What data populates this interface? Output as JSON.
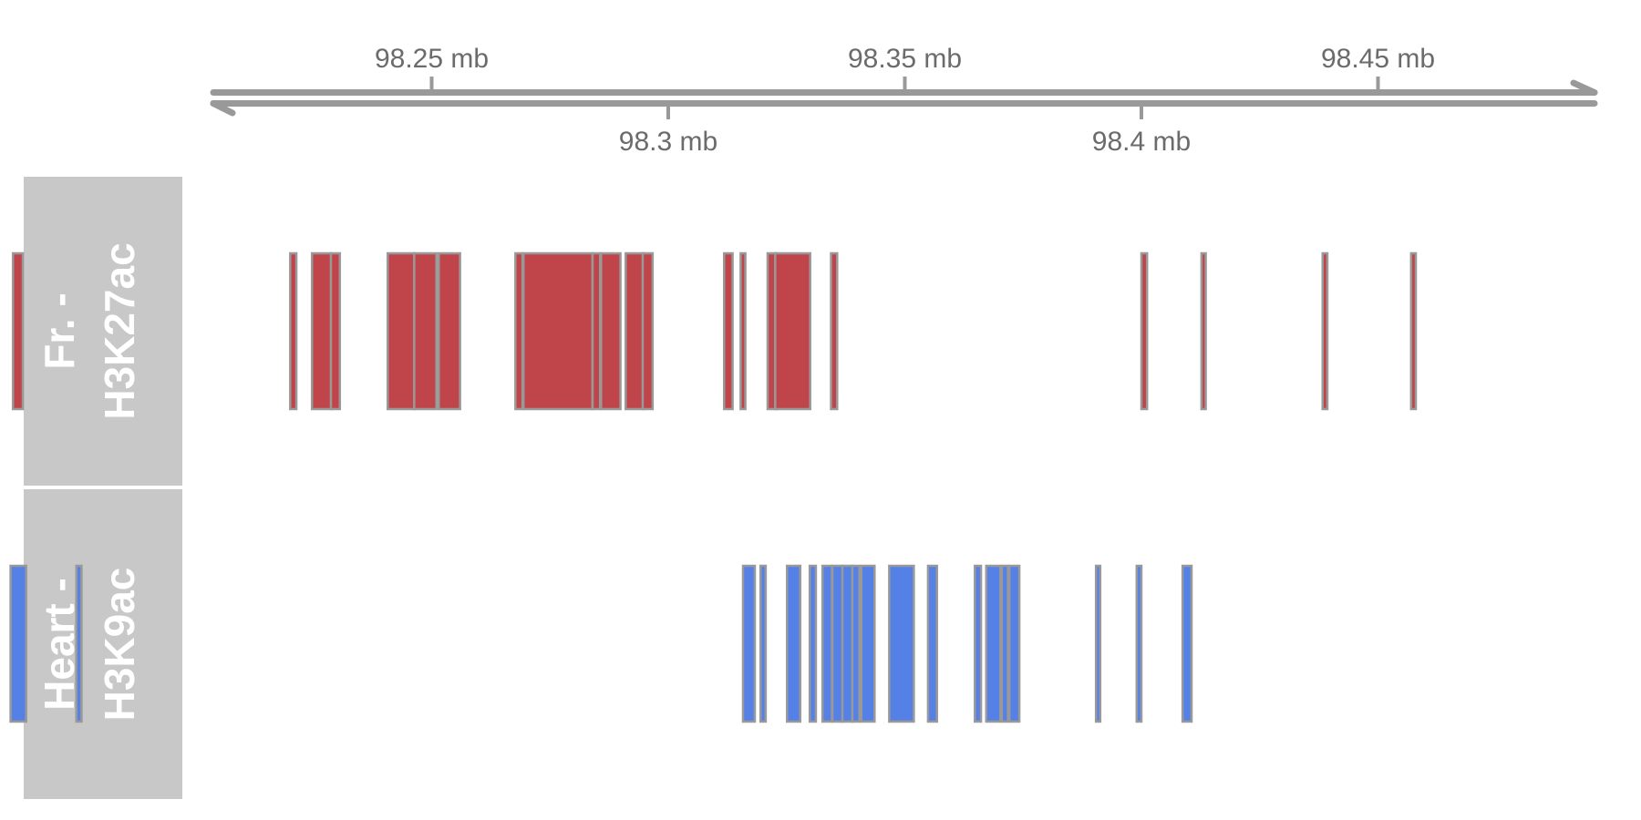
{
  "chart_data": {
    "type": "genome-track-plot",
    "axis": {
      "unit": "mb",
      "range": [
        98.1625,
        98.4565
      ],
      "ticks_top": [
        {
          "value": 98.25,
          "label": "98.25 mb"
        },
        {
          "value": 98.35,
          "label": "98.35 mb"
        },
        {
          "value": 98.45,
          "label": "98.45 mb"
        }
      ],
      "ticks_bottom": [
        {
          "value": 98.3,
          "label": "98.3 mb"
        },
        {
          "value": 98.4,
          "label": "98.4 mb"
        }
      ],
      "color": "#999999"
    },
    "tracks": [
      {
        "label_line1": "Fr. -",
        "label_line2": "H3K27ac",
        "fill": "#c0454a",
        "border": "#999999",
        "label_bg": "#c8c8c8",
        "features": [
          [
            98.1615,
            98.1636
          ],
          [
            98.2201,
            98.2214
          ],
          [
            98.2247,
            98.2289
          ],
          [
            98.2287,
            98.2306
          ],
          [
            98.2407,
            98.2465
          ],
          [
            98.2463,
            98.251
          ],
          [
            98.2515,
            98.256
          ],
          [
            98.2677,
            98.2692
          ],
          [
            98.2694,
            98.284
          ],
          [
            98.284,
            98.2856
          ],
          [
            98.2858,
            98.2899
          ],
          [
            98.291,
            98.2949
          ],
          [
            98.2946,
            98.2967
          ],
          [
            98.3118,
            98.3136
          ],
          [
            98.3153,
            98.3163
          ],
          [
            98.321,
            98.323
          ],
          [
            98.3226,
            98.33
          ],
          [
            98.3344,
            98.3357
          ],
          [
            98.4,
            98.4012
          ],
          [
            98.4127,
            98.4136
          ],
          [
            98.4383,
            98.4393
          ],
          [
            98.457,
            98.458
          ]
        ]
      },
      {
        "label_line1": "Heart -",
        "label_line2": "H3K9ac",
        "fill": "#5580e6",
        "border": "#999999",
        "label_bg": "#c8c8c8",
        "features": [
          [
            98.161,
            98.1643
          ],
          [
            98.1749,
            98.176
          ],
          [
            98.3158,
            98.3183
          ],
          [
            98.3195,
            98.3206
          ],
          [
            98.3251,
            98.3279
          ],
          [
            98.3299,
            98.3312
          ],
          [
            98.3326,
            98.3346
          ],
          [
            98.3347,
            98.337
          ],
          [
            98.3368,
            98.339
          ],
          [
            98.3389,
            98.3404
          ],
          [
            98.3408,
            98.3436
          ],
          [
            98.3467,
            98.3519
          ],
          [
            98.3549,
            98.3568
          ],
          [
            98.3648,
            98.3661
          ],
          [
            98.3672,
            98.3702
          ],
          [
            98.3705,
            98.3718
          ],
          [
            98.3721,
            98.3742
          ],
          [
            98.3904,
            98.3913
          ],
          [
            98.399,
            98.4
          ],
          [
            98.4087,
            98.4106
          ]
        ]
      }
    ]
  }
}
